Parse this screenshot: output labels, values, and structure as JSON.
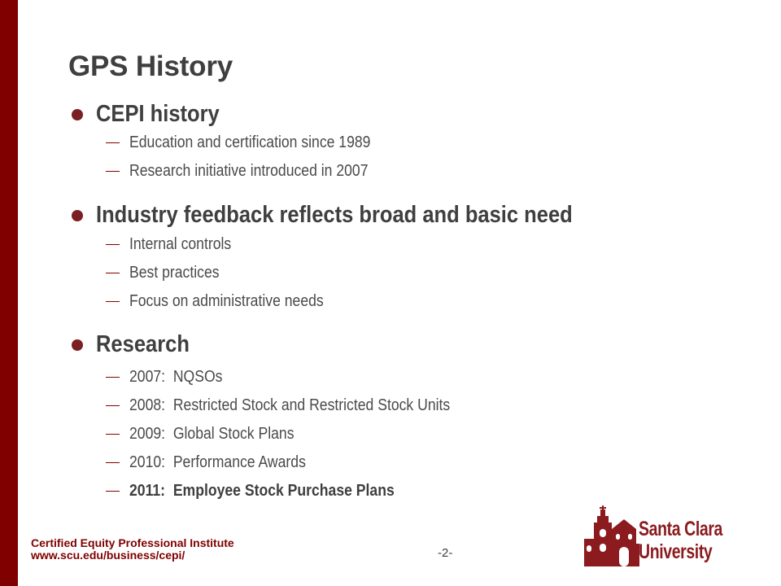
{
  "slide": {
    "title": "GPS History",
    "sections": [
      {
        "heading": "CEPI history",
        "items": [
          "Education and certification since 1989",
          "Research initiative introduced in 2007"
        ]
      },
      {
        "heading": "Industry feedback reflects broad and basic need",
        "items": [
          "Internal controls",
          "Best practices",
          "Focus on administrative needs"
        ]
      },
      {
        "heading": "Research",
        "items": [
          "2007:  NQSOs",
          "2008:  Restricted Stock and Restricted Stock Units",
          "2009:  Global Stock Plans",
          "2010:  Performance Awards",
          "2011:  Employee Stock Purchase Plans"
        ]
      }
    ]
  },
  "footer": {
    "org": "Certified Equity Professional Institute",
    "url": "www.scu.edu/business/cepi/",
    "page": "-2-"
  },
  "logo": {
    "line1": "Santa Clara",
    "line2": "University"
  },
  "colors": {
    "accent": "#800000",
    "text": "#3f3f3f"
  }
}
